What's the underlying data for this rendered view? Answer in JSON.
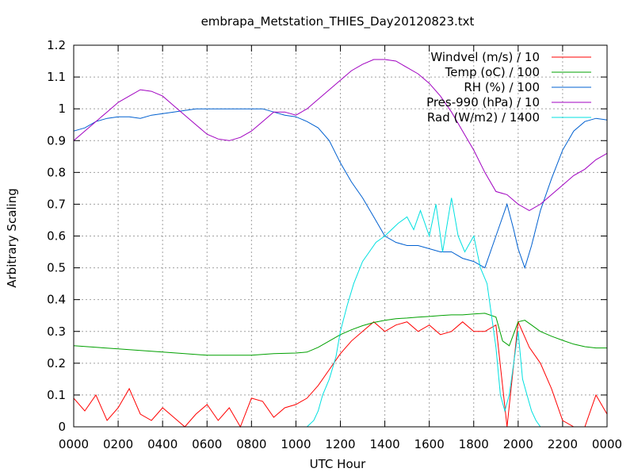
{
  "chart_data": {
    "type": "line",
    "title": "embrapa_Metstation_THIES_Day20120823.txt",
    "xlabel": "UTC Hour",
    "ylabel": "Arbitrary Scaling",
    "xlim": [
      0,
      24
    ],
    "ylim": [
      0,
      1.2
    ],
    "grid": true,
    "legend_position": "top-right",
    "x_ticks": [
      "0000",
      "0200",
      "0400",
      "0600",
      "0800",
      "1000",
      "1200",
      "1400",
      "1600",
      "1800",
      "2000",
      "2200",
      "0000"
    ],
    "y_ticks": [
      "0",
      "0.1",
      "0.2",
      "0.3",
      "0.4",
      "0.5",
      "0.6",
      "0.7",
      "0.8",
      "0.9",
      "1",
      "1.1",
      "1.2"
    ],
    "series": [
      {
        "name": "Windvel (m/s) / 10",
        "color": "#ff0000",
        "x": [
          0,
          0.5,
          1,
          1.5,
          2,
          2.5,
          3,
          3.5,
          4,
          4.5,
          5,
          5.5,
          6,
          6.5,
          7,
          7.5,
          8,
          8.5,
          9,
          9.5,
          10,
          10.5,
          11,
          11.5,
          12,
          12.5,
          13,
          13.5,
          14,
          14.5,
          15,
          15.5,
          16,
          16.5,
          17,
          17.5,
          18,
          18.5,
          19,
          19.5,
          20,
          20.5,
          21,
          21.5,
          22,
          22.5,
          23,
          23.5,
          24
        ],
        "y": [
          0.09,
          0.05,
          0.1,
          0.02,
          0.06,
          0.12,
          0.04,
          0.02,
          0.06,
          0.03,
          0.0,
          0.04,
          0.07,
          0.02,
          0.06,
          0.0,
          0.09,
          0.08,
          0.03,
          0.06,
          0.07,
          0.09,
          0.13,
          0.18,
          0.23,
          0.27,
          0.3,
          0.33,
          0.3,
          0.32,
          0.33,
          0.3,
          0.32,
          0.29,
          0.3,
          0.33,
          0.3,
          0.3,
          0.32,
          0.0,
          0.33,
          0.25,
          0.2,
          0.12,
          0.02,
          0.0,
          0.0,
          0.1,
          0.04
        ]
      },
      {
        "name": "Temp (oC) / 100",
        "color": "#00a000",
        "x": [
          0,
          1,
          2,
          3,
          4,
          5,
          6,
          7,
          8,
          9,
          10,
          10.5,
          11,
          11.5,
          12,
          12.5,
          13,
          13.5,
          14,
          14.5,
          15,
          15.5,
          16,
          16.5,
          17,
          17.5,
          18,
          18.5,
          19,
          19.3,
          19.6,
          20,
          20.3,
          20.6,
          21,
          21.5,
          22,
          22.5,
          23,
          23.5,
          24
        ],
        "y": [
          0.255,
          0.25,
          0.245,
          0.24,
          0.235,
          0.23,
          0.225,
          0.225,
          0.225,
          0.23,
          0.232,
          0.235,
          0.25,
          0.27,
          0.29,
          0.305,
          0.318,
          0.328,
          0.335,
          0.34,
          0.342,
          0.345,
          0.347,
          0.35,
          0.352,
          0.352,
          0.355,
          0.357,
          0.345,
          0.27,
          0.255,
          0.33,
          0.335,
          0.32,
          0.3,
          0.285,
          0.272,
          0.26,
          0.252,
          0.248,
          0.248
        ]
      },
      {
        "name": "RH (%) / 100",
        "color": "#0060d0",
        "x": [
          0,
          0.5,
          1,
          1.5,
          2,
          2.5,
          3,
          3.5,
          4,
          4.5,
          5,
          5.5,
          6,
          6.5,
          7,
          7.5,
          8,
          8.5,
          9,
          9.5,
          10,
          10.5,
          11,
          11.5,
          12,
          12.5,
          13,
          13.5,
          14,
          14.5,
          15,
          15.5,
          16,
          16.5,
          17,
          17.5,
          18,
          18.5,
          19,
          19.5,
          19.8,
          20,
          20.3,
          20.6,
          21,
          21.5,
          22,
          22.5,
          23,
          23.5,
          24
        ],
        "y": [
          0.93,
          0.94,
          0.96,
          0.97,
          0.975,
          0.975,
          0.97,
          0.98,
          0.985,
          0.99,
          0.995,
          1.0,
          1.0,
          1.0,
          1.0,
          1.0,
          1.0,
          1.0,
          0.99,
          0.98,
          0.975,
          0.96,
          0.94,
          0.9,
          0.83,
          0.77,
          0.72,
          0.66,
          0.6,
          0.58,
          0.57,
          0.57,
          0.56,
          0.55,
          0.55,
          0.53,
          0.52,
          0.5,
          0.6,
          0.7,
          0.62,
          0.56,
          0.5,
          0.57,
          0.68,
          0.78,
          0.87,
          0.93,
          0.96,
          0.97,
          0.965
        ]
      },
      {
        "name": "Pres-990 (hPa) / 10",
        "color": "#a000c0",
        "x": [
          0,
          0.5,
          1,
          1.5,
          2,
          2.5,
          3,
          3.5,
          4,
          4.5,
          5,
          5.5,
          6,
          6.5,
          7,
          7.5,
          8,
          8.5,
          9,
          9.5,
          10,
          10.5,
          11,
          11.5,
          12,
          12.5,
          13,
          13.5,
          14,
          14.5,
          15,
          15.5,
          16,
          16.5,
          17,
          17.5,
          18,
          18.5,
          19,
          19.5,
          20,
          20.5,
          21,
          21.5,
          22,
          22.5,
          23,
          23.5,
          24
        ],
        "y": [
          0.9,
          0.93,
          0.96,
          0.99,
          1.02,
          1.04,
          1.06,
          1.055,
          1.04,
          1.01,
          0.98,
          0.95,
          0.92,
          0.905,
          0.9,
          0.91,
          0.93,
          0.96,
          0.99,
          0.99,
          0.98,
          1.0,
          1.03,
          1.06,
          1.09,
          1.12,
          1.14,
          1.155,
          1.155,
          1.15,
          1.13,
          1.11,
          1.08,
          1.04,
          0.99,
          0.93,
          0.87,
          0.8,
          0.74,
          0.73,
          0.7,
          0.68,
          0.7,
          0.73,
          0.76,
          0.79,
          0.81,
          0.84,
          0.86
        ]
      },
      {
        "name": "Rad (W/m2) / 1400",
        "color": "#00e0e0",
        "x": [
          0,
          10.5,
          10.8,
          11,
          11.2,
          11.5,
          11.8,
          12,
          12.3,
          12.6,
          13,
          13.3,
          13.6,
          14,
          14.3,
          14.6,
          15,
          15.3,
          15.6,
          16,
          16.3,
          16.6,
          17,
          17.3,
          17.6,
          18,
          18.3,
          18.6,
          18.8,
          19,
          19.2,
          19.4,
          19.6,
          19.8,
          20,
          20.2,
          20.4,
          20.6,
          20.8,
          21,
          21.3,
          21.6,
          22,
          22.5,
          24
        ],
        "y": [
          0,
          0,
          0.02,
          0.05,
          0.1,
          0.15,
          0.22,
          0.3,
          0.38,
          0.45,
          0.52,
          0.55,
          0.58,
          0.6,
          0.62,
          0.64,
          0.66,
          0.62,
          0.68,
          0.6,
          0.7,
          0.55,
          0.72,
          0.6,
          0.55,
          0.6,
          0.5,
          0.45,
          0.35,
          0.25,
          0.1,
          0.05,
          0.1,
          0.2,
          0.3,
          0.15,
          0.1,
          0.05,
          0.02,
          0.0,
          0,
          0,
          0,
          0,
          0
        ]
      }
    ]
  }
}
